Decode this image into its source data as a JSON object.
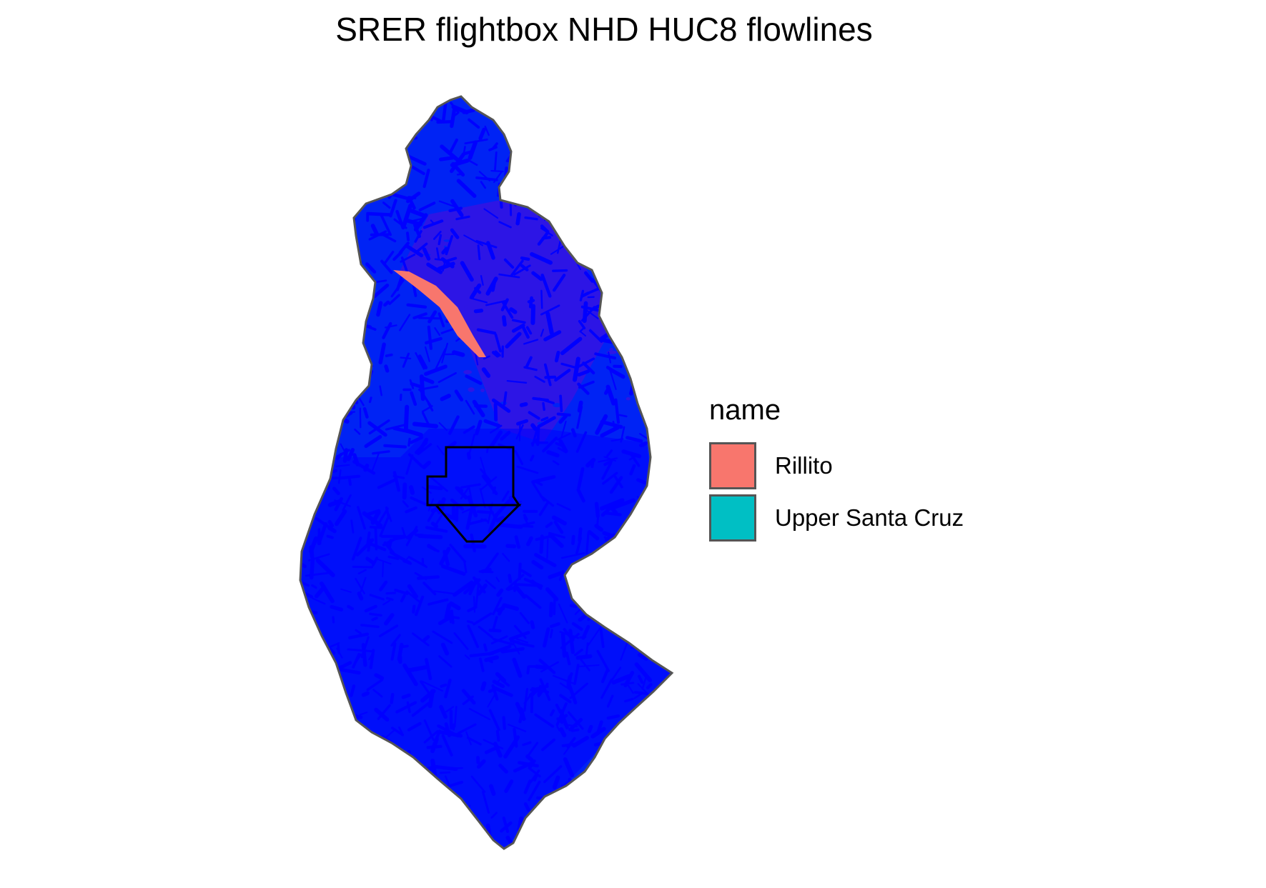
{
  "title": "SRER flightbox NHD HUC8 flowlines",
  "map": {
    "flowline_color": "#0000FF",
    "boundary_color": "#555555",
    "flightbox_color": "#000000"
  },
  "legend": {
    "title": "name",
    "items": [
      {
        "label": "Rillito",
        "color": "#F8766D"
      },
      {
        "label": "Upper Santa Cruz",
        "color": "#00BFC4"
      }
    ]
  }
}
